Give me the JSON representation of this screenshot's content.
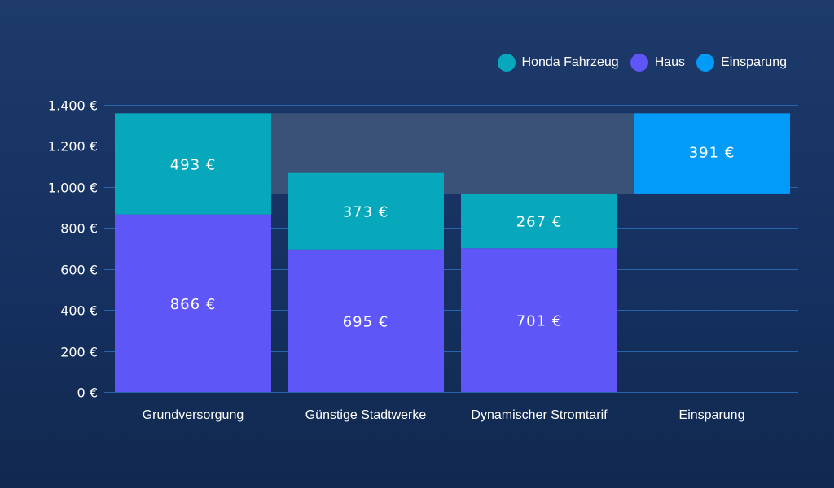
{
  "colors": {
    "background": "#18335f",
    "gridline": "#2f76c6",
    "bridge": "#3c5478"
  },
  "legend": [
    {
      "label": "Honda Fahrzeug",
      "color": "#08a8bc"
    },
    {
      "label": "Haus",
      "color": "#5f56f7"
    },
    {
      "label": "Einsparung",
      "color": "#029bf8"
    }
  ],
  "chart_data": {
    "type": "bar",
    "stacked": true,
    "title": "",
    "xlabel": "",
    "ylabel": "",
    "categories": [
      "Grundversorgung",
      "Günstige Stadtwerke",
      "Dynamischer Stromtarif",
      "Einsparung"
    ],
    "series": [
      {
        "name": "Haus",
        "color": "#5f56f7",
        "values": [
          866,
          695,
          701,
          null
        ]
      },
      {
        "name": "Honda Fahrzeug",
        "color": "#08a8bc",
        "values": [
          493,
          373,
          267,
          null
        ]
      }
    ],
    "savings": {
      "name": "Einsparung",
      "color": "#029bf8",
      "category": "Einsparung",
      "low": 968,
      "high": 1359,
      "value": 391,
      "label": "391  €"
    },
    "data_labels": [
      [
        "866  €",
        "695  €",
        "701  €",
        ""
      ],
      [
        "493  €",
        "373  €",
        "267  €",
        ""
      ]
    ],
    "ylim": [
      0,
      1400
    ],
    "yticks": [
      0,
      200,
      400,
      600,
      800,
      1000,
      1200,
      1400
    ],
    "ytick_labels": [
      "0  €",
      "200  €",
      "400  €",
      "600  €",
      "800  €",
      "1.000  €",
      "1.200  €",
      "1.400  €"
    ],
    "grid": true,
    "legend_position": "top-right"
  }
}
